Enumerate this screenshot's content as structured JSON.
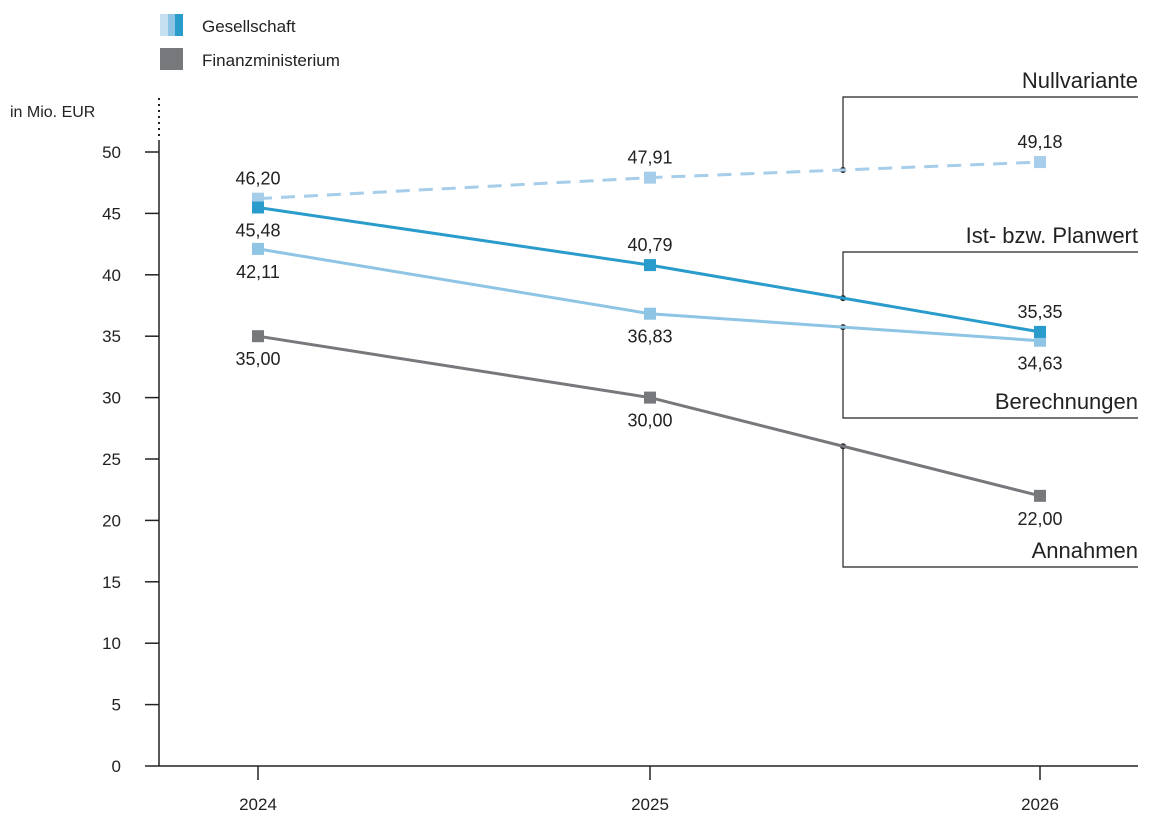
{
  "chart_data": {
    "type": "line",
    "ylabel": "in Mio. EUR",
    "ylim": [
      0,
      50
    ],
    "y_ticks": [
      "0",
      "5",
      "10",
      "15",
      "20",
      "25",
      "30",
      "35",
      "40",
      "45",
      "50"
    ],
    "categories": [
      "2024",
      "2025",
      "2026"
    ],
    "legend": [
      {
        "label": "Gesellschaft",
        "icon": "blue-swatch-icon"
      },
      {
        "label": "Finanzministerium",
        "icon": "gray-swatch-icon"
      }
    ],
    "series": [
      {
        "key": "nullvariante",
        "values": [
          46.2,
          47.91,
          49.18
        ],
        "labels": [
          "46,20",
          "47,91",
          "49,18"
        ],
        "color": "#a6cde9",
        "dashed": true,
        "label_side": [
          "above",
          "above",
          "above"
        ]
      },
      {
        "key": "ist_planwert",
        "values": [
          45.48,
          40.79,
          35.35
        ],
        "labels": [
          "45,48",
          "40,79",
          "35,35"
        ],
        "color": "#2a9ccc",
        "dashed": false,
        "label_side": [
          "below",
          "above",
          "above"
        ]
      },
      {
        "key": "berechnungen",
        "values": [
          42.11,
          36.83,
          34.63
        ],
        "labels": [
          "42,11",
          "36,83",
          "34,63"
        ],
        "color": "#8ec4e4",
        "dashed": false,
        "label_side": [
          "below",
          "below",
          "below"
        ]
      },
      {
        "key": "annahmen",
        "values": [
          35.0,
          30.0,
          22.0
        ],
        "labels": [
          "35,00",
          "30,00",
          "22,00"
        ],
        "color": "#76787b",
        "dashed": false,
        "label_side": [
          "below",
          "below",
          "below"
        ]
      }
    ],
    "callouts": [
      {
        "series": "nullvariante",
        "label": "Nullvariante",
        "direction": "up"
      },
      {
        "series": "ist_planwert",
        "label": "Ist- bzw. Planwert",
        "direction": "up"
      },
      {
        "series": "berechnungen",
        "label": "Berechnungen",
        "direction": "down"
      },
      {
        "series": "annahmen",
        "label": "Annahmen",
        "direction": "down"
      }
    ],
    "colors": {
      "axis": "#222222",
      "gesellschaft_dark": "#2a9ccc",
      "gesellschaft_light": "#a6cde9",
      "finanzministerium": "#76787b"
    }
  }
}
